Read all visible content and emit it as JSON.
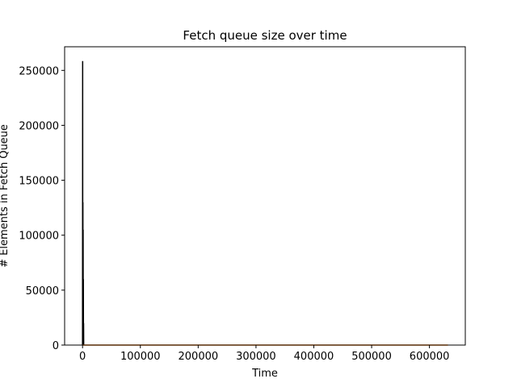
{
  "chart_data": {
    "type": "line",
    "title": "Fetch queue size over time",
    "xlabel": "Time",
    "ylabel": "# Elements in Fetch Queue",
    "xlim": [
      -31000,
      662000
    ],
    "ylim": [
      0,
      271500
    ],
    "xticks": [
      0,
      100000,
      200000,
      300000,
      400000,
      500000,
      600000
    ],
    "xtick_labels": [
      "0",
      "100000",
      "200000",
      "300000",
      "400000",
      "500000",
      "600000"
    ],
    "yticks": [
      0,
      50000,
      100000,
      150000,
      200000,
      250000
    ],
    "ytick_labels": [
      "0",
      "50000",
      "100000",
      "150000",
      "200000",
      "250000"
    ],
    "grid": false,
    "series": [
      {
        "color": "#000000",
        "x": [
          0,
          200,
          400,
          600,
          800,
          1000,
          1200,
          1400,
          1600,
          1800,
          2000
        ],
        "y": [
          0,
          258500,
          0,
          130000,
          0,
          105000,
          0,
          60000,
          0,
          20000,
          0
        ]
      },
      {
        "color": "#ff7f0e",
        "x": [
          0,
          632000
        ],
        "y": [
          0,
          0
        ]
      }
    ]
  }
}
